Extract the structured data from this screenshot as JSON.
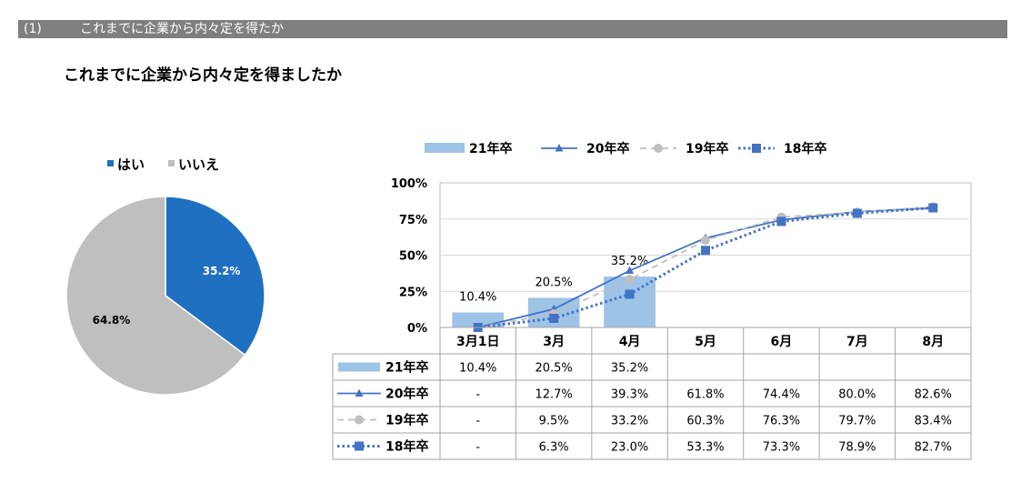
{
  "section": {
    "number": "(1)",
    "title": "これまでに企業から内々定を得たか"
  },
  "subtitle": "これまでに企業から内々定を得ましたか",
  "colors": {
    "bar21": "#9dc3e6",
    "line20": "#4472c4",
    "line19": "#bfbfbf",
    "line18": "#4472c4",
    "pie_yes": "#1f70c1",
    "pie_no": "#bfbfbf",
    "header_bar": "#7f7f7f"
  },
  "chart_data": [
    {
      "type": "pie",
      "legend": [
        "はい",
        "いいえ"
      ],
      "labels": [
        "はい",
        "いいえ"
      ],
      "values": [
        35.2,
        64.8
      ],
      "value_labels": [
        "35.2%",
        "64.8%"
      ]
    },
    {
      "type": "bar",
      "categories": [
        "3月1日",
        "3月",
        "4月",
        "5月",
        "6月",
        "7月",
        "8月"
      ],
      "ylim": [
        0,
        100
      ],
      "yticks": [
        "0%",
        "25%",
        "50%",
        "75%",
        "100%"
      ],
      "bar_labels": [
        "10.4%",
        "20.5%",
        "35.2%"
      ],
      "series": [
        {
          "name": "21年卒",
          "kind": "bar",
          "values": [
            10.4,
            20.5,
            35.2,
            null,
            null,
            null,
            null
          ],
          "cells": [
            "10.4%",
            "20.5%",
            "35.2%",
            "",
            "",
            "",
            ""
          ]
        },
        {
          "name": "20年卒",
          "kind": "line",
          "values": [
            0,
            12.7,
            39.3,
            61.8,
            74.4,
            80.0,
            82.6
          ],
          "cells": [
            "-",
            "12.7%",
            "39.3%",
            "61.8%",
            "74.4%",
            "80.0%",
            "82.6%"
          ]
        },
        {
          "name": "19年卒",
          "kind": "line",
          "values": [
            0,
            9.5,
            33.2,
            60.3,
            76.3,
            79.7,
            83.4
          ],
          "cells": [
            "-",
            "9.5%",
            "33.2%",
            "60.3%",
            "76.3%",
            "79.7%",
            "83.4%"
          ]
        },
        {
          "name": "18年卒",
          "kind": "line",
          "values": [
            0,
            6.3,
            23.0,
            53.3,
            73.3,
            78.9,
            82.7
          ],
          "cells": [
            "-",
            "6.3%",
            "23.0%",
            "53.3%",
            "73.3%",
            "78.9%",
            "82.7%"
          ]
        }
      ]
    }
  ]
}
